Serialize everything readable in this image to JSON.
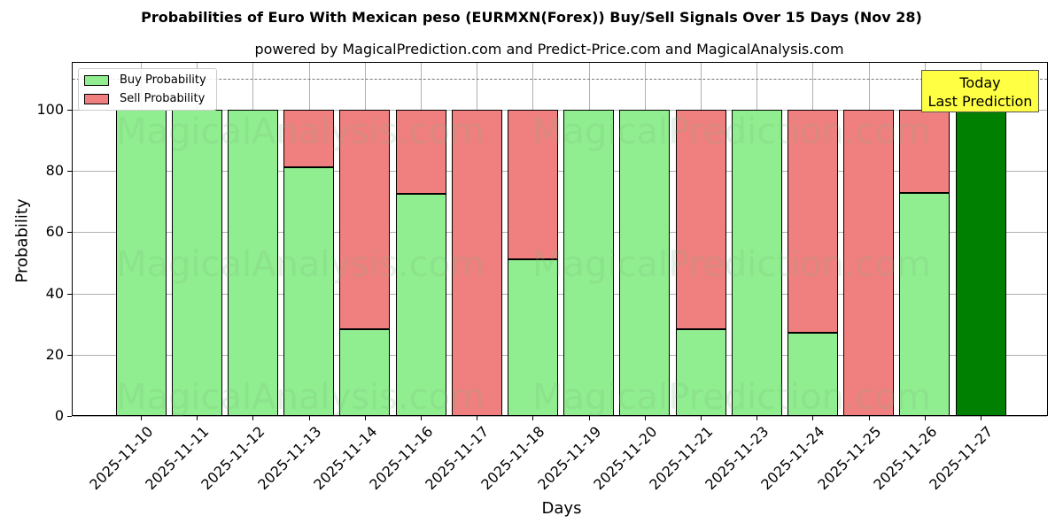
{
  "header": {
    "title": "Probabilities of Euro With Mexican peso (EURMXN(Forex)) Buy/Sell Signals Over 15 Days (Nov 28)",
    "subtitle": "powered by MagicalPrediction.com and Predict-Price.com and MagicalAnalysis.com"
  },
  "legend": {
    "buy_label": "Buy Probability",
    "sell_label": "Sell Probability"
  },
  "annotation": {
    "line1": "Today",
    "line2": "Last Prediction"
  },
  "watermarks": [
    "MagicalAnalysis.com",
    "MagicalPrediction.com"
  ],
  "colors": {
    "buy": "#90ee90",
    "sell": "#f08080",
    "today": "#008000",
    "annotation_bg": "#ffff44",
    "grid": "#b0b0b0"
  },
  "chart_data": {
    "type": "bar",
    "stacked": true,
    "title": "Probabilities of Euro With Mexican peso (EURMXN(Forex)) Buy/Sell Signals Over 15 Days (Nov 28)",
    "subtitle": "powered by MagicalPrediction.com and Predict-Price.com and MagicalAnalysis.com",
    "xlabel": "Days",
    "ylabel": "Probability",
    "ylim": [
      0,
      115
    ],
    "yticks": [
      0,
      20,
      40,
      60,
      80,
      100
    ],
    "grid": true,
    "legend_position": "upper left",
    "reference_line": 110,
    "categories": [
      "2025-11-10",
      "2025-11-11",
      "2025-11-12",
      "2025-11-13",
      "2025-11-14",
      "2025-11-16",
      "2025-11-17",
      "2025-11-18",
      "2025-11-19",
      "2025-11-20",
      "2025-11-21",
      "2025-11-23",
      "2025-11-24",
      "2025-11-25",
      "2025-11-26",
      "2025-11-27"
    ],
    "series": [
      {
        "name": "Buy Probability",
        "values": [
          100,
          100,
          100,
          81.2,
          28.3,
          72.5,
          0,
          51.2,
          100,
          100,
          28.3,
          100,
          27.2,
          0,
          72.8,
          100
        ]
      },
      {
        "name": "Sell Probability",
        "values": [
          0,
          0,
          0,
          18.8,
          71.7,
          27.5,
          100,
          48.8,
          0,
          0,
          71.7,
          0,
          72.8,
          100,
          27.2,
          0
        ]
      }
    ],
    "highlight": {
      "category": "2025-11-27",
      "label": "Today Last Prediction",
      "color": "#008000"
    }
  }
}
